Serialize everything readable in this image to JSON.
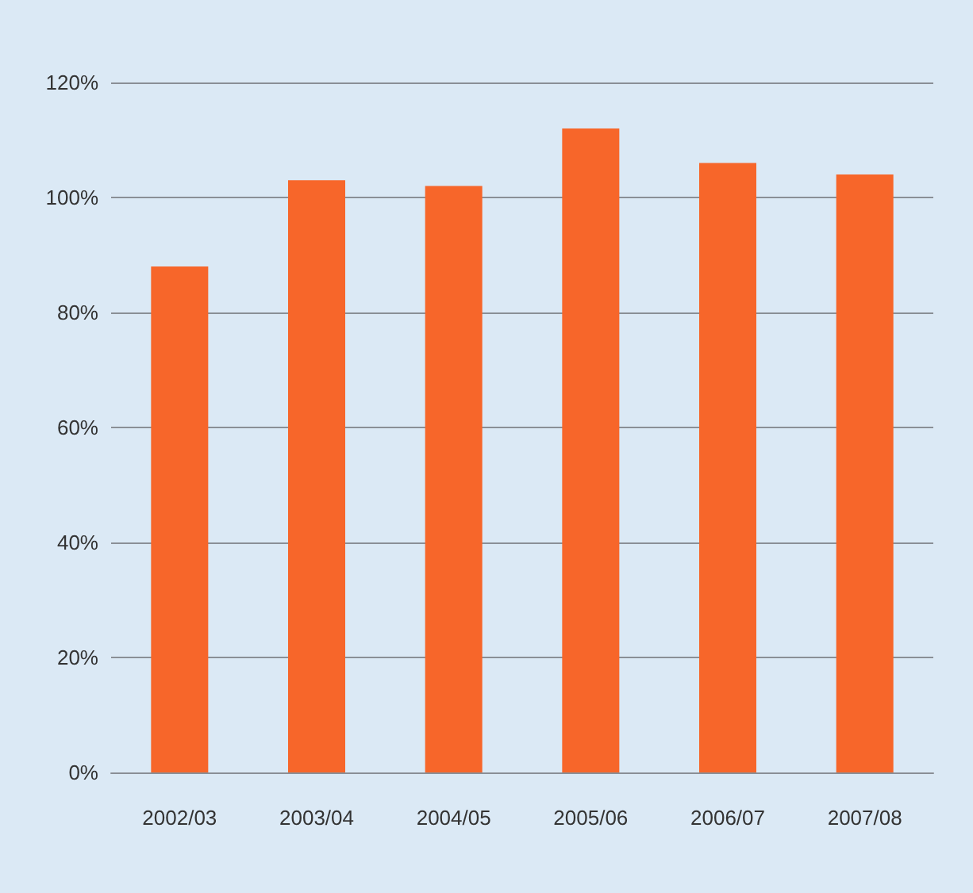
{
  "chart_data": {
    "type": "bar",
    "categories": [
      "2002/03",
      "2003/04",
      "2004/05",
      "2005/06",
      "2006/07",
      "2007/08"
    ],
    "series": [
      {
        "color": "#f7662a",
        "values": [
          88,
          103,
          102,
          112,
          106,
          104
        ]
      }
    ],
    "ylim": [
      0,
      120
    ],
    "yticks": [
      {
        "value": 0,
        "label": "0%"
      },
      {
        "value": 20,
        "label": "20%"
      },
      {
        "value": 40,
        "label": "40%"
      },
      {
        "value": 60,
        "label": "60%"
      },
      {
        "value": 80,
        "label": "80%"
      },
      {
        "value": 100,
        "label": "100%"
      },
      {
        "value": 120,
        "label": "120%"
      }
    ],
    "grid": "y"
  }
}
